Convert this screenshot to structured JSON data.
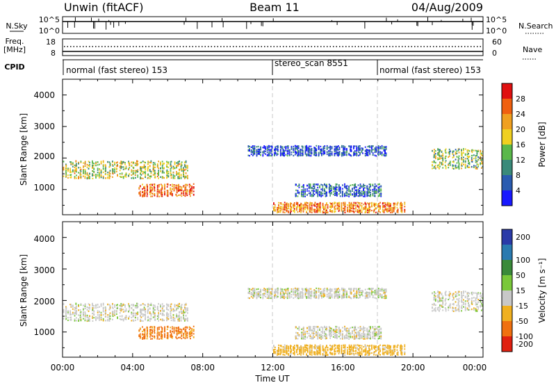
{
  "header": {
    "site": "Unwin (fitACF)",
    "beam": "Beam 11",
    "date": "04/Aug/2009"
  },
  "status_panels": {
    "nsky_label": "N.Sky",
    "nsky_ticks": [
      "10^5",
      "10^0"
    ],
    "nsearch_label": "N.Search",
    "nsearch_ticks": [
      "10^5",
      "10^0"
    ],
    "freq_label": "Freq.",
    "freq_unit": "[MHz]",
    "freq_ticks": [
      "18",
      "8"
    ],
    "nave_label": "Nave",
    "nave_ticks": [
      "60",
      "0"
    ],
    "cpid_label": "CPID",
    "modes": [
      {
        "text": "normal (fast stereo) 153"
      },
      {
        "text": "stereo_scan 8551"
      },
      {
        "text": "normal (fast stereo) 153"
      }
    ]
  },
  "chart_data": [
    {
      "type": "heatmap",
      "name": "Power",
      "xlabel": "Time UT",
      "ylabel": "Slant Range [km]",
      "xlim": [
        0,
        24
      ],
      "ylim": [
        200,
        4500
      ],
      "x_ticks": [
        "00:00",
        "04:00",
        "08:00",
        "12:00",
        "16:00",
        "20:00",
        "00:00"
      ],
      "y_ticks": [
        "1000",
        "2000",
        "3000",
        "4000"
      ],
      "colorbar": {
        "label": "Power [dB]",
        "ticks": [
          "4",
          "8",
          "12",
          "16",
          "20",
          "24",
          "28"
        ],
        "range": [
          0,
          30
        ],
        "colors": [
          "#1818ff",
          "#2a5bb0",
          "#3a8a7a",
          "#5ab84a",
          "#f0d020",
          "#f0a020",
          "#f06010",
          "#e01010"
        ]
      },
      "mode_boundaries_hours": [
        12.0,
        18.05
      ],
      "echo_regions": [
        {
          "t_start": 0.0,
          "t_end": 7.2,
          "range_center": 1650,
          "range_width": 350,
          "power": 16
        },
        {
          "t_start": 4.3,
          "t_end": 7.5,
          "range_center": 1000,
          "range_width": 250,
          "power": 24
        },
        {
          "t_start": 10.5,
          "t_end": 18.5,
          "range_center": 2250,
          "range_width": 200,
          "power": 5
        },
        {
          "t_start": 13.2,
          "t_end": 18.2,
          "range_center": 1000,
          "range_width": 250,
          "power": 7
        },
        {
          "t_start": 12.0,
          "t_end": 19.5,
          "range_center": 450,
          "range_width": 200,
          "power": 22
        },
        {
          "t_start": 21.0,
          "t_end": 24.0,
          "range_center": 2000,
          "range_width": 400,
          "power": 14
        }
      ]
    },
    {
      "type": "heatmap",
      "name": "Velocity",
      "xlabel": "Time UT",
      "ylabel": "Slant Range [km]",
      "xlim": [
        0,
        24
      ],
      "ylim": [
        200,
        4500
      ],
      "x_ticks": [
        "00:00",
        "04:00",
        "08:00",
        "12:00",
        "16:00",
        "20:00",
        "00:00"
      ],
      "y_ticks": [
        "1000",
        "2000",
        "3000",
        "4000"
      ],
      "colorbar": {
        "label": "Velocity [m s⁻¹]",
        "ticks": [
          "200",
          "100",
          "50",
          "15",
          "-15",
          "-50",
          "-100",
          "-200"
        ],
        "colors": [
          "#2a3aa8",
          "#2a7ab0",
          "#3a8a3a",
          "#7ac83a",
          "#c8c8c8",
          "#f0b020",
          "#f07010",
          "#e02010"
        ]
      },
      "mode_boundaries_hours": [
        12.0,
        18.05
      ],
      "echo_regions": [
        {
          "t_start": 0.0,
          "t_end": 7.2,
          "range_center": 1650,
          "range_width": 350,
          "velocity": 0
        },
        {
          "t_start": 4.3,
          "t_end": 7.5,
          "range_center": 1000,
          "range_width": 250,
          "velocity": -60
        },
        {
          "t_start": 10.5,
          "t_end": 18.5,
          "range_center": 2250,
          "range_width": 200,
          "velocity": 0
        },
        {
          "t_start": 13.2,
          "t_end": 18.2,
          "range_center": 1000,
          "range_width": 250,
          "velocity": 0
        },
        {
          "t_start": 12.0,
          "t_end": 19.5,
          "range_center": 450,
          "range_width": 200,
          "velocity": -30
        },
        {
          "t_start": 21.0,
          "t_end": 24.0,
          "range_center": 2000,
          "range_width": 400,
          "velocity": 0
        }
      ]
    }
  ]
}
